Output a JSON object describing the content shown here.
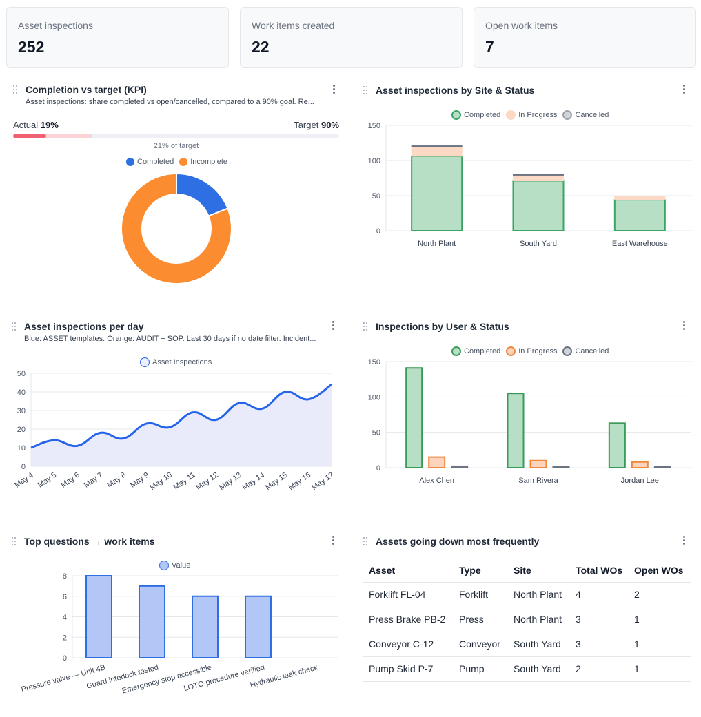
{
  "kpis": [
    {
      "label": "Asset inspections",
      "value": "252"
    },
    {
      "label": "Work items created",
      "value": "22"
    },
    {
      "label": "Open work items",
      "value": "7"
    }
  ],
  "completion": {
    "title": "Completion vs target (KPI)",
    "subtitle": "Asset inspections: share completed vs open/cancelled, compared to a 90% goal. Re...",
    "actual_label": "Actual",
    "actual_value": "19%",
    "target_label": "Target",
    "target_value": "90%",
    "actual_fraction": 0.19,
    "target_fraction": 0.9,
    "of_target": "21% of target",
    "legend": [
      "Completed",
      "Incomplete"
    ],
    "colors": {
      "completed": "#2f6fe4",
      "incomplete": "#fb8c2f",
      "bar": "#f06272",
      "track": "#eef0f6"
    }
  },
  "site_status": {
    "title": "Asset inspections by Site & Status",
    "legend": [
      "Completed",
      "In Progress",
      "Cancelled"
    ]
  },
  "per_day": {
    "title": "Asset inspections per day",
    "subtitle": "Blue: ASSET templates. Orange: AUDIT + SOP. Last 30 days if no date filter. Incident...",
    "legend": "Asset Inspections"
  },
  "user_status": {
    "title": "Inspections by User & Status",
    "legend": [
      "Completed",
      "In Progress",
      "Cancelled"
    ]
  },
  "top_questions": {
    "title": "Top questions → work items",
    "legend": "Value"
  },
  "assets_down": {
    "title": "Assets going down most frequently",
    "columns": [
      "Asset",
      "Type",
      "Site",
      "Total WOs",
      "Open WOs"
    ],
    "rows": [
      [
        "Forklift FL-04",
        "Forklift",
        "North Plant",
        "4",
        "2"
      ],
      [
        "Press Brake PB-2",
        "Press",
        "North Plant",
        "3",
        "1"
      ],
      [
        "Conveyor C-12",
        "Conveyor",
        "South Yard",
        "3",
        "1"
      ],
      [
        "Pump Skid P-7",
        "Pump",
        "South Yard",
        "2",
        "1"
      ]
    ]
  },
  "chart_data": [
    {
      "type": "pie",
      "title": "Completion vs target (KPI)",
      "labels": [
        "Completed",
        "Incomplete"
      ],
      "values": [
        19,
        81
      ],
      "colors": [
        "#2f6fe4",
        "#fb8c2f"
      ]
    },
    {
      "type": "bar",
      "stacked": true,
      "title": "Asset inspections by Site & Status",
      "categories": [
        "North Plant",
        "South Yard",
        "East Warehouse"
      ],
      "series": [
        {
          "name": "Completed",
          "values": [
            106,
            71,
            44
          ],
          "fill": "#b7dfc6",
          "stroke": "#3aa564"
        },
        {
          "name": "In Progress",
          "values": [
            14,
            8,
            5
          ],
          "fill": "#fcd9c4",
          "stroke": "#fcd9c4"
        },
        {
          "name": "Cancelled",
          "values": [
            1,
            1,
            0
          ],
          "fill": "#9ca3af",
          "stroke": "#6b7280"
        }
      ],
      "ylim": [
        0,
        150
      ],
      "yticks": [
        0,
        50,
        100,
        150
      ]
    },
    {
      "type": "area",
      "title": "Asset inspections per day",
      "categories": [
        "May 4",
        "May 5",
        "May 6",
        "May 7",
        "May 8",
        "May 9",
        "May 10",
        "May 11",
        "May 12",
        "May 13",
        "May 14",
        "May 15",
        "May 16",
        "May 17"
      ],
      "series": [
        {
          "name": "Asset Inspections",
          "values": [
            10,
            14,
            11,
            18,
            15,
            23,
            21,
            29,
            25,
            34,
            31,
            40,
            36,
            44
          ]
        }
      ],
      "ylim": [
        0,
        50
      ],
      "yticks": [
        0,
        10,
        20,
        30,
        40,
        50
      ],
      "color": "#2563eb",
      "fill": "#e9ebfb"
    },
    {
      "type": "bar",
      "title": "Inspections by User & Status",
      "categories": [
        "Alex Chen",
        "Sam Rivera",
        "Jordan Lee"
      ],
      "series": [
        {
          "name": "Completed",
          "values": [
            141,
            105,
            63
          ],
          "fill": "#b7dfc6",
          "stroke": "#3a9a5a"
        },
        {
          "name": "In Progress",
          "values": [
            15,
            10,
            8
          ],
          "fill": "#fcd3bd",
          "stroke": "#f0883e"
        },
        {
          "name": "Cancelled",
          "values": [
            2,
            1,
            0.5
          ],
          "fill": "#d1d5db",
          "stroke": "#6b7280"
        }
      ],
      "ylim": [
        0,
        150
      ],
      "yticks": [
        0,
        50,
        100,
        150
      ]
    },
    {
      "type": "bar",
      "title": "Top questions → work items",
      "categories": [
        "Pressure valve — Unit 4B",
        "Guard interlock tested",
        "Emergency stop accessible",
        "LOTO procedure verified",
        "Hydraulic leak check"
      ],
      "series": [
        {
          "name": "Value",
          "values": [
            8,
            7,
            6,
            6,
            0
          ]
        }
      ],
      "ylim": [
        0,
        8
      ],
      "yticks": [
        0,
        2,
        4,
        6,
        8
      ],
      "fill": "#b3c7f7",
      "stroke": "#2f6fe4"
    }
  ]
}
